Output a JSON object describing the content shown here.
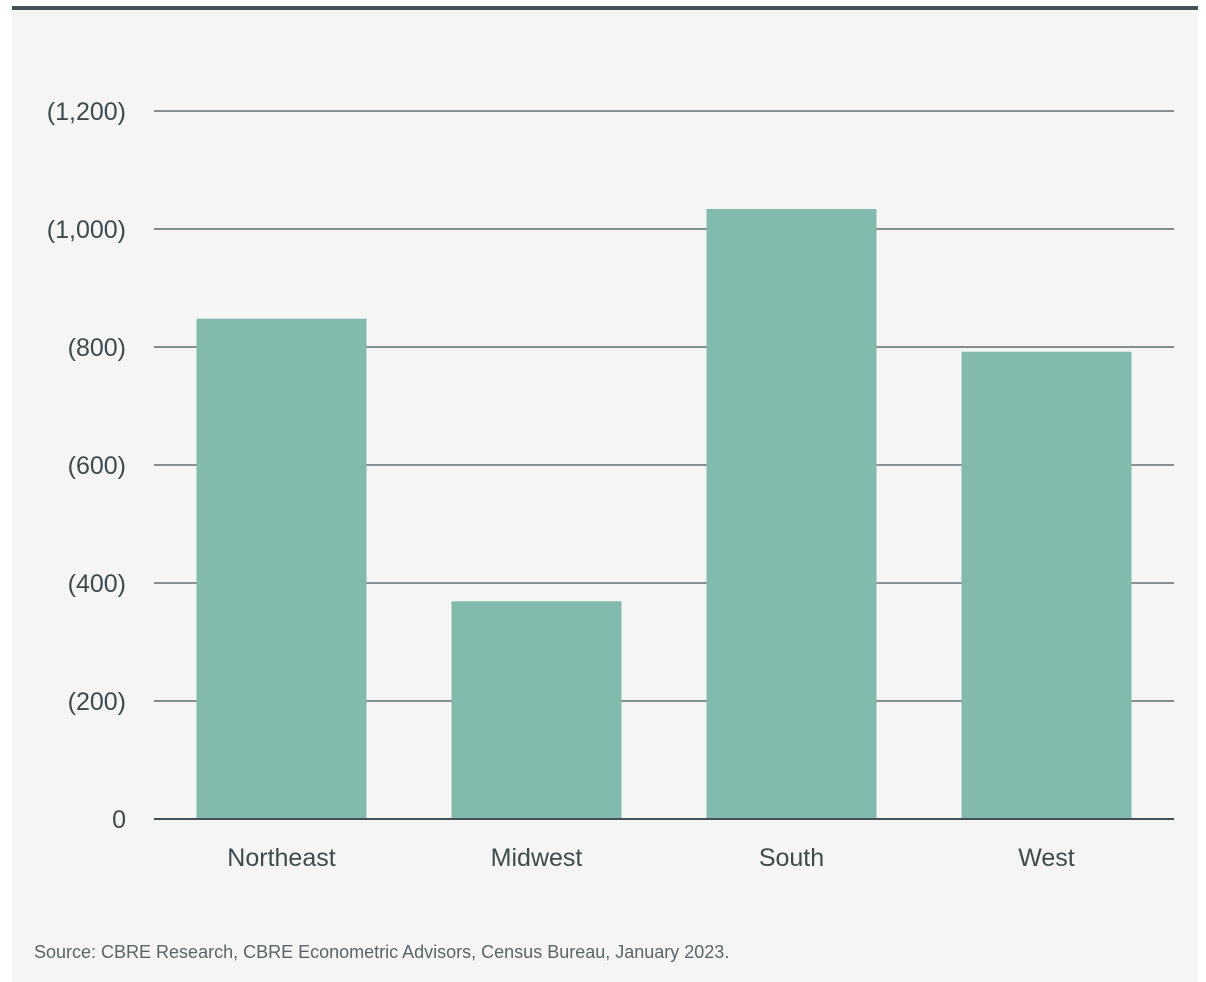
{
  "chart_data": {
    "type": "bar",
    "title": "",
    "xlabel": "",
    "ylabel": "",
    "categories": [
      "Northeast",
      "Midwest",
      "South",
      "West"
    ],
    "values": [
      -848,
      -369,
      -1034,
      -792
    ],
    "ylim": [
      -1200,
      0
    ],
    "yticks": [
      0,
      -200,
      -400,
      -600,
      -800,
      -1000,
      -1200
    ],
    "ytick_labels": [
      "0",
      "(200)",
      "(400)",
      "(600)",
      "(800)",
      "(1,000)",
      "(1,200)"
    ],
    "axis_inverted": true,
    "grid": true,
    "bar_color": "#82bbad",
    "legend": "none"
  },
  "source_note": "Source: CBRE Research, CBRE Econometric Advisors, Census Bureau, January 2023.",
  "colors": {
    "background": "#f5f5f5",
    "top_rule": "#435254",
    "gridline": "#435254",
    "text": "#3f4a4c"
  }
}
